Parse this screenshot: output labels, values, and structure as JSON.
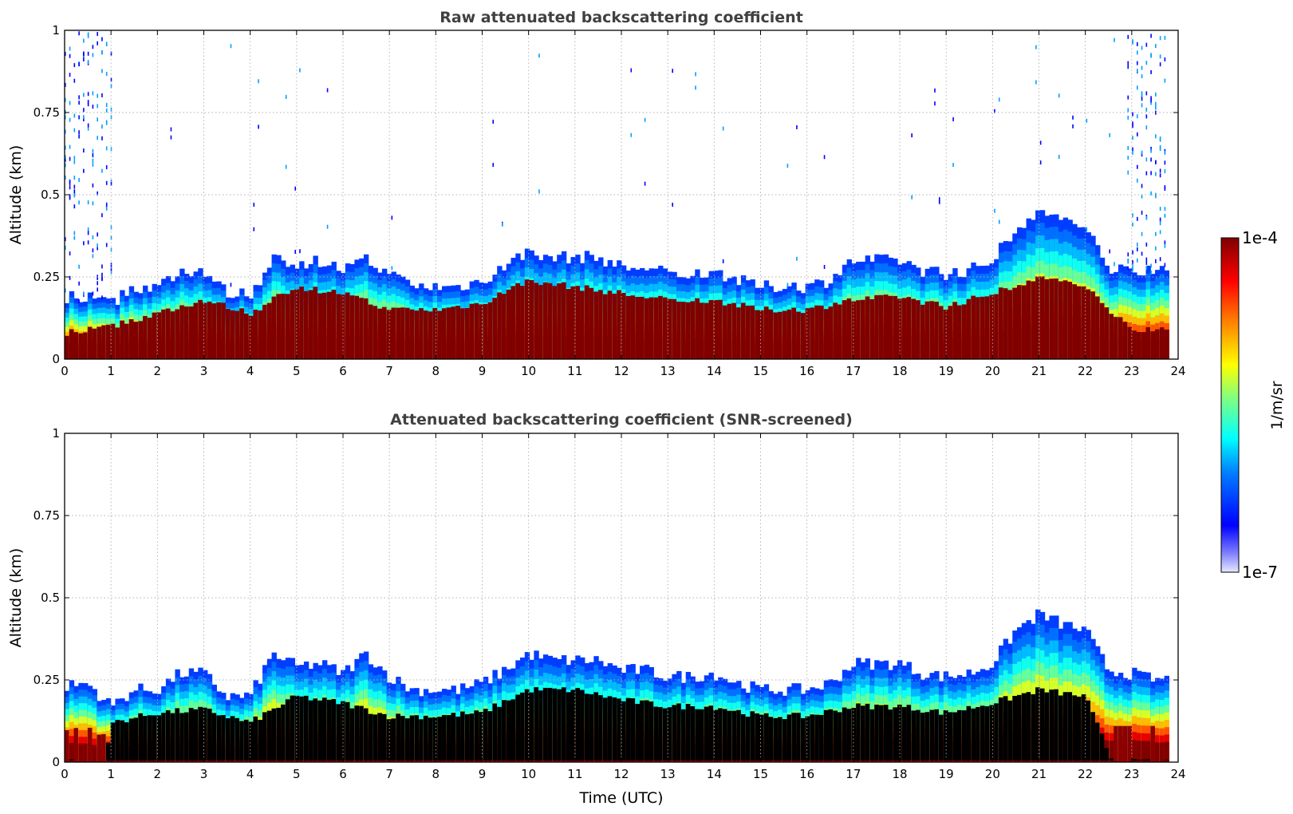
{
  "figure": {
    "colormap": "jet",
    "grid": true,
    "grid_style": "dotted"
  },
  "colorbar": {
    "label": "1/m/sr",
    "min_label": "1e-7",
    "max_label": "1e-4",
    "scale": "log",
    "range": [
      1e-07,
      0.0001
    ]
  },
  "chart_data": [
    {
      "type": "heatmap",
      "title": "Raw attenuated backscattering coefficient",
      "xlabel": "",
      "ylabel": "Altitude (km)",
      "xlim": [
        0,
        24
      ],
      "ylim": [
        0,
        1
      ],
      "x_ticks": [
        "0",
        "1",
        "2",
        "3",
        "4",
        "5",
        "6",
        "7",
        "8",
        "9",
        "10",
        "11",
        "12",
        "13",
        "14",
        "15",
        "16",
        "17",
        "18",
        "19",
        "20",
        "21",
        "22",
        "23",
        "24"
      ],
      "y_ticks": [
        "0",
        "0.25",
        "0.5",
        "0.75",
        "1"
      ],
      "data_end_hour": 23.8,
      "layer_top_km": [
        [
          0,
          0.19
        ],
        [
          0.5,
          0.19
        ],
        [
          1,
          0.17
        ],
        [
          1.5,
          0.22
        ],
        [
          2,
          0.22
        ],
        [
          2.5,
          0.27
        ],
        [
          3,
          0.27
        ],
        [
          3.5,
          0.2
        ],
        [
          4,
          0.2
        ],
        [
          4.5,
          0.3
        ],
        [
          5,
          0.29
        ],
        [
          5.5,
          0.3
        ],
        [
          6,
          0.27
        ],
        [
          6.5,
          0.3
        ],
        [
          7,
          0.26
        ],
        [
          7.5,
          0.22
        ],
        [
          8,
          0.22
        ],
        [
          8.5,
          0.22
        ],
        [
          9,
          0.24
        ],
        [
          9.5,
          0.28
        ],
        [
          10,
          0.33
        ],
        [
          10.5,
          0.31
        ],
        [
          11,
          0.31
        ],
        [
          11.5,
          0.31
        ],
        [
          12,
          0.28
        ],
        [
          12.5,
          0.28
        ],
        [
          13,
          0.26
        ],
        [
          13.5,
          0.26
        ],
        [
          14,
          0.27
        ],
        [
          14.5,
          0.24
        ],
        [
          15,
          0.22
        ],
        [
          15.5,
          0.22
        ],
        [
          16,
          0.22
        ],
        [
          16.5,
          0.24
        ],
        [
          17,
          0.3
        ],
        [
          17.5,
          0.3
        ],
        [
          18,
          0.3
        ],
        [
          18.5,
          0.27
        ],
        [
          19,
          0.26
        ],
        [
          19.5,
          0.27
        ],
        [
          20,
          0.3
        ],
        [
          20.5,
          0.4
        ],
        [
          21,
          0.45
        ],
        [
          21.5,
          0.42
        ],
        [
          22,
          0.4
        ],
        [
          22.5,
          0.28
        ],
        [
          23,
          0.27
        ],
        [
          23.5,
          0.27
        ]
      ],
      "core_top_km": [
        [
          0,
          0.08
        ],
        [
          1,
          0.1
        ],
        [
          2,
          0.14
        ],
        [
          3,
          0.18
        ],
        [
          4,
          0.14
        ],
        [
          5,
          0.22
        ],
        [
          6,
          0.2
        ],
        [
          7,
          0.15
        ],
        [
          8,
          0.15
        ],
        [
          9,
          0.17
        ],
        [
          10,
          0.24
        ],
        [
          11,
          0.22
        ],
        [
          12,
          0.2
        ],
        [
          13,
          0.18
        ],
        [
          14,
          0.18
        ],
        [
          15,
          0.15
        ],
        [
          16,
          0.15
        ],
        [
          17,
          0.18
        ],
        [
          18,
          0.19
        ],
        [
          19,
          0.16
        ],
        [
          20,
          0.2
        ],
        [
          21,
          0.25
        ],
        [
          22,
          0.22
        ],
        [
          23,
          0.09
        ],
        [
          23.8,
          0.09
        ]
      ],
      "noise_above_layer": true
    },
    {
      "type": "heatmap",
      "title": "Attenuated backscattering coefficient (SNR-screened)",
      "xlabel": "Time (UTC)",
      "ylabel": "Altitude (km)",
      "xlim": [
        0,
        24
      ],
      "ylim": [
        0,
        1
      ],
      "x_ticks": [
        "0",
        "1",
        "2",
        "3",
        "4",
        "5",
        "6",
        "7",
        "8",
        "9",
        "10",
        "11",
        "12",
        "13",
        "14",
        "15",
        "16",
        "17",
        "18",
        "19",
        "20",
        "21",
        "22",
        "23",
        "24"
      ],
      "y_ticks": [
        "0",
        "0.25",
        "0.5",
        "0.75",
        "1"
      ],
      "data_end_hour": 23.8,
      "masked_color": "#000000",
      "layer_top_km": [
        [
          0,
          0.23
        ],
        [
          0.5,
          0.24
        ],
        [
          1,
          0.17
        ],
        [
          1.5,
          0.22
        ],
        [
          2,
          0.22
        ],
        [
          2.5,
          0.27
        ],
        [
          3,
          0.27
        ],
        [
          3.5,
          0.2
        ],
        [
          4,
          0.2
        ],
        [
          4.5,
          0.33
        ],
        [
          5,
          0.29
        ],
        [
          5.5,
          0.3
        ],
        [
          6,
          0.27
        ],
        [
          6.5,
          0.33
        ],
        [
          7,
          0.26
        ],
        [
          7.5,
          0.22
        ],
        [
          8,
          0.22
        ],
        [
          8.5,
          0.22
        ],
        [
          9,
          0.24
        ],
        [
          9.5,
          0.28
        ],
        [
          10,
          0.33
        ],
        [
          10.5,
          0.31
        ],
        [
          11,
          0.31
        ],
        [
          11.5,
          0.31
        ],
        [
          12,
          0.28
        ],
        [
          12.5,
          0.28
        ],
        [
          13,
          0.26
        ],
        [
          13.5,
          0.26
        ],
        [
          14,
          0.27
        ],
        [
          14.5,
          0.24
        ],
        [
          15,
          0.22
        ],
        [
          15.5,
          0.22
        ],
        [
          16,
          0.22
        ],
        [
          16.5,
          0.24
        ],
        [
          17,
          0.3
        ],
        [
          17.5,
          0.3
        ],
        [
          18,
          0.3
        ],
        [
          18.5,
          0.27
        ],
        [
          19,
          0.26
        ],
        [
          19.5,
          0.27
        ],
        [
          20,
          0.3
        ],
        [
          20.5,
          0.4
        ],
        [
          21,
          0.45
        ],
        [
          21.5,
          0.42
        ],
        [
          22,
          0.4
        ],
        [
          22.5,
          0.28
        ],
        [
          23,
          0.27
        ],
        [
          23.5,
          0.25
        ]
      ],
      "masked_top_km": [
        [
          0,
          0.0
        ],
        [
          0.9,
          0.0
        ],
        [
          1,
          0.12
        ],
        [
          2,
          0.15
        ],
        [
          3,
          0.16
        ],
        [
          4,
          0.12
        ],
        [
          5,
          0.2
        ],
        [
          6,
          0.18
        ],
        [
          7,
          0.14
        ],
        [
          8,
          0.14
        ],
        [
          9,
          0.15
        ],
        [
          10,
          0.22
        ],
        [
          11,
          0.22
        ],
        [
          12,
          0.19
        ],
        [
          13,
          0.17
        ],
        [
          14,
          0.17
        ],
        [
          15,
          0.14
        ],
        [
          16,
          0.14
        ],
        [
          17,
          0.17
        ],
        [
          18,
          0.17
        ],
        [
          19,
          0.15
        ],
        [
          20,
          0.18
        ],
        [
          21,
          0.22
        ],
        [
          22,
          0.2
        ],
        [
          22.6,
          0.0
        ],
        [
          23.8,
          0.0
        ]
      ],
      "noise_above_layer": false
    }
  ]
}
